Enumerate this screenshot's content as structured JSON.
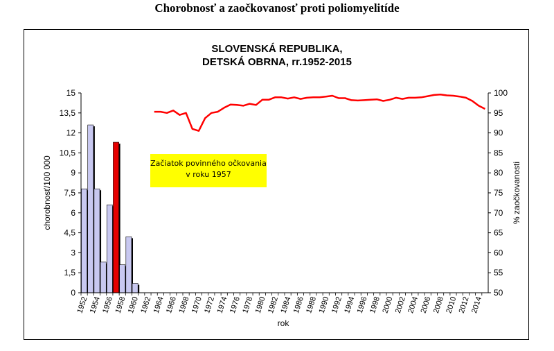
{
  "document_title": "Chorobnosť a zaočkovanosť proti poliomyelitíde",
  "chart_data": {
    "type": "bar+line",
    "title_line1": "SLOVENSKÁ REPUBLIKA,",
    "title_line2": "DETSKÁ OBRNA, rr.1952-2015",
    "xlabel": "rok",
    "ylabel_left": "chorobnosť/100 000",
    "ylabel_right": "% zaočkovanosti",
    "ylim_left": [
      0,
      15
    ],
    "ylim_right": [
      50,
      100
    ],
    "yticks_left": [
      "0",
      "1,5",
      "3",
      "4,5",
      "6",
      "7,5",
      "9",
      "10,5",
      "12",
      "13,5",
      "15"
    ],
    "yticks_right": [
      "50",
      "55",
      "60",
      "65",
      "70",
      "75",
      "80",
      "85",
      "90",
      "95",
      "100"
    ],
    "x_tick_labels": [
      "1952",
      "1954",
      "1956",
      "1958",
      "1960",
      "1962",
      "1964",
      "1966",
      "1968",
      "1970",
      "1972",
      "1974",
      "1976",
      "1978",
      "1980",
      "1982",
      "1984",
      "1986",
      "1988",
      "1990",
      "1992",
      "1994",
      "1996",
      "1998",
      "2000",
      "2002",
      "2004",
      "2006",
      "2008",
      "2010",
      "2012",
      "2014"
    ],
    "years": [
      1952,
      1953,
      1954,
      1955,
      1956,
      1957,
      1958,
      1959,
      1960,
      1961,
      1962,
      1963,
      1964,
      1965,
      1966,
      1967,
      1968,
      1969,
      1970,
      1971,
      1972,
      1973,
      1974,
      1975,
      1976,
      1977,
      1978,
      1979,
      1980,
      1981,
      1982,
      1983,
      1984,
      1985,
      1986,
      1987,
      1988,
      1989,
      1990,
      1991,
      1992,
      1993,
      1994,
      1995,
      1996,
      1997,
      1998,
      1999,
      2000,
      2001,
      2002,
      2003,
      2004,
      2005,
      2006,
      2007,
      2008,
      2009,
      2010,
      2011,
      2012,
      2013,
      2014,
      2015
    ],
    "bars": [
      {
        "year": 1952,
        "value": 7.8
      },
      {
        "year": 1953,
        "value": 12.6
      },
      {
        "year": 1954,
        "value": 7.8
      },
      {
        "year": 1955,
        "value": 2.3
      },
      {
        "year": 1956,
        "value": 6.6
      },
      {
        "year": 1957,
        "value": 11.3
      },
      {
        "year": 1958,
        "value": 2.1
      },
      {
        "year": 1959,
        "value": 4.2
      },
      {
        "year": 1960,
        "value": 0.7
      }
    ],
    "highlight_year": 1957,
    "colors": {
      "bar": "#c8c8f0",
      "bar_highlight": "#e60000",
      "line": "#ff0000",
      "note_bg": "#ffff00"
    },
    "vaccination_line": [
      {
        "year": 1963,
        "value": 95.3
      },
      {
        "year": 1964,
        "value": 95.3
      },
      {
        "year": 1965,
        "value": 95.0
      },
      {
        "year": 1966,
        "value": 95.6
      },
      {
        "year": 1967,
        "value": 94.5
      },
      {
        "year": 1968,
        "value": 95.0
      },
      {
        "year": 1969,
        "value": 91.0
      },
      {
        "year": 1970,
        "value": 90.5
      },
      {
        "year": 1971,
        "value": 93.7
      },
      {
        "year": 1972,
        "value": 95.0
      },
      {
        "year": 1973,
        "value": 95.3
      },
      {
        "year": 1974,
        "value": 96.3
      },
      {
        "year": 1975,
        "value": 97.1
      },
      {
        "year": 1976,
        "value": 97.0
      },
      {
        "year": 1977,
        "value": 96.8
      },
      {
        "year": 1978,
        "value": 97.3
      },
      {
        "year": 1979,
        "value": 97.0
      },
      {
        "year": 1980,
        "value": 98.3
      },
      {
        "year": 1981,
        "value": 98.3
      },
      {
        "year": 1982,
        "value": 98.9
      },
      {
        "year": 1983,
        "value": 98.9
      },
      {
        "year": 1984,
        "value": 98.6
      },
      {
        "year": 1985,
        "value": 98.9
      },
      {
        "year": 1986,
        "value": 98.5
      },
      {
        "year": 1987,
        "value": 98.8
      },
      {
        "year": 1988,
        "value": 98.9
      },
      {
        "year": 1989,
        "value": 98.9
      },
      {
        "year": 1990,
        "value": 99.1
      },
      {
        "year": 1991,
        "value": 99.3
      },
      {
        "year": 1992,
        "value": 98.7
      },
      {
        "year": 1993,
        "value": 98.7
      },
      {
        "year": 1994,
        "value": 98.2
      },
      {
        "year": 1995,
        "value": 98.1
      },
      {
        "year": 1996,
        "value": 98.2
      },
      {
        "year": 1997,
        "value": 98.3
      },
      {
        "year": 1998,
        "value": 98.4
      },
      {
        "year": 1999,
        "value": 98.0
      },
      {
        "year": 2000,
        "value": 98.3
      },
      {
        "year": 2001,
        "value": 98.8
      },
      {
        "year": 2002,
        "value": 98.5
      },
      {
        "year": 2003,
        "value": 98.8
      },
      {
        "year": 2004,
        "value": 98.8
      },
      {
        "year": 2005,
        "value": 98.9
      },
      {
        "year": 2006,
        "value": 99.2
      },
      {
        "year": 2007,
        "value": 99.5
      },
      {
        "year": 2008,
        "value": 99.6
      },
      {
        "year": 2009,
        "value": 99.4
      },
      {
        "year": 2010,
        "value": 99.3
      },
      {
        "year": 2011,
        "value": 99.1
      },
      {
        "year": 2012,
        "value": 98.8
      },
      {
        "year": 2013,
        "value": 98.0
      },
      {
        "year": 2014,
        "value": 96.8
      },
      {
        "year": 2015,
        "value": 96.0
      }
    ],
    "annotation_line1": "Začiatok povinného očkovania",
    "annotation_line2": "v roku 1957"
  }
}
